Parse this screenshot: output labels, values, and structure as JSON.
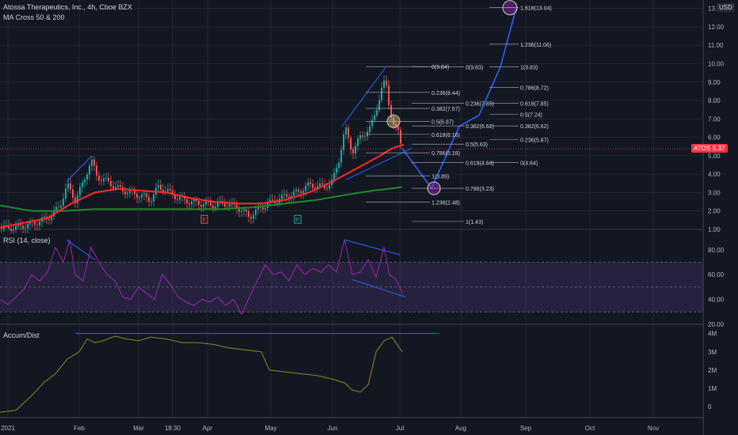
{
  "header": {
    "symbol_title": "Atossa Therapeutics, Inc., 4h, Cboe BZX",
    "indicator": "MA Cross 50 & 200"
  },
  "currency_badge": "USD",
  "price_tag": {
    "label": "ATOS",
    "value": "5.37",
    "color": "#f23645"
  },
  "colors": {
    "background": "#131722",
    "grid": "#2a2e39",
    "up_candle": "#26a69a",
    "down_candle": "#ef5350",
    "ma50": "#ff2a2a",
    "ma200": "#1f8a2a",
    "drawing": "#2962ff",
    "rsi": "#9c27b0",
    "ad": "#8c8c1a"
  },
  "panes": {
    "rsi_label": "RSI (14, close)",
    "ad_label": "Accum/Dist"
  },
  "chart_data": [
    {
      "type": "candlestick",
      "title": "Atossa Therapeutics, Inc., 4h, Cboe BZX",
      "y_ticks": [
        "1.00",
        "2.00",
        "3.00",
        "4.00",
        "5.00",
        "6.00",
        "7.00",
        "8.00",
        "9.00",
        "10.00",
        "11.00",
        "12.00",
        "13.00"
      ],
      "x_ticks": [
        "2021",
        "Feb",
        "Mar",
        "18:30",
        "Apr",
        "May",
        "Jun",
        "Jul",
        "Aug",
        "Sep",
        "Oct",
        "Nov"
      ],
      "ylim": [
        1,
        13.2
      ],
      "close_path": [
        [
          0,
          1.05
        ],
        [
          20,
          1.1
        ],
        [
          40,
          1.3
        ],
        [
          60,
          1.6
        ],
        [
          75,
          2.2
        ],
        [
          85,
          3.4
        ],
        [
          95,
          2.6
        ],
        [
          105,
          3.5
        ],
        [
          115,
          4.8
        ],
        [
          122,
          3.9
        ],
        [
          135,
          3.6
        ],
        [
          150,
          3.2
        ],
        [
          165,
          3.0
        ],
        [
          180,
          2.8
        ],
        [
          190,
          2.6
        ],
        [
          200,
          3.3
        ],
        [
          210,
          3.1
        ],
        [
          225,
          2.7
        ],
        [
          240,
          2.5
        ],
        [
          255,
          2.4
        ],
        [
          270,
          2.3
        ],
        [
          285,
          2.4
        ],
        [
          300,
          2.2
        ],
        [
          315,
          1.7
        ],
        [
          330,
          2.2
        ],
        [
          345,
          2.5
        ],
        [
          360,
          2.8
        ],
        [
          375,
          3.0
        ],
        [
          390,
          3.4
        ],
        [
          410,
          3.3
        ],
        [
          420,
          3.6
        ],
        [
          428,
          4.8
        ],
        [
          436,
          6.5
        ],
        [
          445,
          5.2
        ],
        [
          455,
          6.0
        ],
        [
          468,
          6.5
        ],
        [
          475,
          7.5
        ],
        [
          482,
          8.6
        ],
        [
          487,
          9.1
        ],
        [
          492,
          7.6
        ],
        [
          498,
          6.5
        ],
        [
          503,
          6.3
        ],
        [
          508,
          5.4
        ]
      ],
      "ma50": [
        [
          0,
          1.1
        ],
        [
          60,
          1.6
        ],
        [
          90,
          2.4
        ],
        [
          120,
          3.0
        ],
        [
          150,
          3.2
        ],
        [
          180,
          3.1
        ],
        [
          210,
          3.0
        ],
        [
          240,
          2.7
        ],
        [
          270,
          2.5
        ],
        [
          300,
          2.4
        ],
        [
          330,
          2.4
        ],
        [
          360,
          2.6
        ],
        [
          390,
          3.0
        ],
        [
          420,
          3.6
        ],
        [
          450,
          4.3
        ],
        [
          480,
          5.0
        ],
        [
          495,
          5.4
        ],
        [
          510,
          5.6
        ]
      ],
      "ma200": [
        [
          0,
          2.3
        ],
        [
          40,
          2.0
        ],
        [
          80,
          2.0
        ],
        [
          120,
          2.1
        ],
        [
          160,
          2.1
        ],
        [
          200,
          2.1
        ],
        [
          240,
          2.1
        ],
        [
          280,
          2.1
        ],
        [
          320,
          2.2
        ],
        [
          360,
          2.4
        ],
        [
          400,
          2.6
        ],
        [
          440,
          2.9
        ],
        [
          470,
          3.1
        ],
        [
          490,
          3.2
        ],
        [
          508,
          3.3
        ]
      ],
      "projection_path": [
        [
          508,
          5.4
        ],
        [
          545,
          3.23
        ],
        [
          580,
          6.6
        ],
        [
          605,
          7.2
        ],
        [
          632,
          9.83
        ],
        [
          652,
          13.04
        ]
      ],
      "markers": [
        "E",
        "E"
      ],
      "fib_levels": [
        {
          "label": "0(9.84)",
          "y": 9.84,
          "col": "a"
        },
        {
          "label": "0.236(8.44)",
          "y": 8.44,
          "col": "a"
        },
        {
          "label": "0.382(7.57)",
          "y": 7.57,
          "col": "a"
        },
        {
          "label": "0.5(6.87)",
          "y": 6.87,
          "col": "a"
        },
        {
          "label": "0.618(6.16)",
          "y": 6.16,
          "col": "a"
        },
        {
          "label": "0.786(5.16)",
          "y": 5.16,
          "col": "a"
        },
        {
          "label": "1(3.89)",
          "y": 3.89,
          "col": "a"
        },
        {
          "label": "1.236(2.48)",
          "y": 2.48,
          "col": "a"
        },
        {
          "label": "0(9.83)",
          "y": 9.83,
          "col": "b"
        },
        {
          "label": "0.236(7.85)",
          "y": 7.85,
          "col": "b"
        },
        {
          "label": "0.382(6.62)",
          "y": 6.62,
          "col": "b"
        },
        {
          "label": "0.5(5.63)",
          "y": 5.63,
          "col": "b"
        },
        {
          "label": "0.618(4.64)",
          "y": 4.64,
          "col": "b"
        },
        {
          "label": "0.786(3.23)",
          "y": 3.23,
          "col": "b"
        },
        {
          "label": "1(1.43)",
          "y": 1.43,
          "col": "b"
        },
        {
          "label": "1.618(13.04)",
          "y": 13.04,
          "col": "c"
        },
        {
          "label": "1.236(11.06)",
          "y": 11.06,
          "col": "c"
        },
        {
          "label": "1(9.83)",
          "y": 9.83,
          "col": "c"
        },
        {
          "label": "0.786(8.72)",
          "y": 8.72,
          "col": "c"
        },
        {
          "label": "0.618(7.85)",
          "y": 7.85,
          "col": "c"
        },
        {
          "label": "0.5(7.24)",
          "y": 7.24,
          "col": "c"
        },
        {
          "label": "0.382(6.62)",
          "y": 6.62,
          "col": "c"
        },
        {
          "label": "0.236(5.87)",
          "y": 5.87,
          "col": "c"
        },
        {
          "label": "0(4.64)",
          "y": 4.64,
          "col": "c"
        }
      ]
    },
    {
      "type": "line",
      "title": "RSI (14, close)",
      "y_ticks": [
        "20.00",
        "40.00",
        "60.00",
        "80.00"
      ],
      "ylim": [
        20,
        92
      ],
      "band": [
        30,
        70
      ],
      "midline": 50,
      "values": [
        [
          0,
          40
        ],
        [
          10,
          36
        ],
        [
          20,
          42
        ],
        [
          30,
          48
        ],
        [
          40,
          60
        ],
        [
          50,
          55
        ],
        [
          60,
          62
        ],
        [
          70,
          82
        ],
        [
          80,
          70
        ],
        [
          88,
          88
        ],
        [
          95,
          60
        ],
        [
          105,
          55
        ],
        [
          115,
          82
        ],
        [
          125,
          70
        ],
        [
          135,
          60
        ],
        [
          145,
          55
        ],
        [
          155,
          42
        ],
        [
          165,
          40
        ],
        [
          175,
          50
        ],
        [
          185,
          45
        ],
        [
          195,
          40
        ],
        [
          205,
          60
        ],
        [
          215,
          52
        ],
        [
          225,
          42
        ],
        [
          235,
          38
        ],
        [
          245,
          35
        ],
        [
          255,
          40
        ],
        [
          265,
          38
        ],
        [
          275,
          42
        ],
        [
          285,
          35
        ],
        [
          295,
          40
        ],
        [
          305,
          28
        ],
        [
          315,
          42
        ],
        [
          325,
          55
        ],
        [
          335,
          68
        ],
        [
          345,
          60
        ],
        [
          355,
          62
        ],
        [
          365,
          55
        ],
        [
          375,
          68
        ],
        [
          385,
          60
        ],
        [
          395,
          65
        ],
        [
          405,
          62
        ],
        [
          415,
          68
        ],
        [
          425,
          62
        ],
        [
          435,
          88
        ],
        [
          445,
          60
        ],
        [
          455,
          62
        ],
        [
          465,
          72
        ],
        [
          475,
          58
        ],
        [
          485,
          82
        ],
        [
          492,
          60
        ],
        [
          500,
          56
        ],
        [
          508,
          45
        ]
      ]
    },
    {
      "type": "line",
      "title": "Accum/Dist",
      "y_ticks": [
        "0",
        "1M",
        "2M",
        "3M",
        "4M"
      ],
      "ylim": [
        -0.6,
        4.2
      ],
      "values": [
        [
          0,
          -0.3
        ],
        [
          20,
          -0.2
        ],
        [
          40,
          0.6
        ],
        [
          55,
          1.3
        ],
        [
          70,
          1.8
        ],
        [
          85,
          2.6
        ],
        [
          100,
          3.0
        ],
        [
          110,
          3.7
        ],
        [
          120,
          3.5
        ],
        [
          130,
          3.6
        ],
        [
          145,
          3.85
        ],
        [
          160,
          3.7
        ],
        [
          175,
          3.6
        ],
        [
          190,
          3.8
        ],
        [
          210,
          3.7
        ],
        [
          230,
          3.5
        ],
        [
          250,
          3.5
        ],
        [
          270,
          3.4
        ],
        [
          290,
          3.2
        ],
        [
          310,
          3.1
        ],
        [
          330,
          3.0
        ],
        [
          340,
          2.0
        ],
        [
          360,
          1.9
        ],
        [
          380,
          1.8
        ],
        [
          400,
          1.7
        ],
        [
          420,
          1.5
        ],
        [
          435,
          1.3
        ],
        [
          445,
          0.9
        ],
        [
          455,
          0.8
        ],
        [
          465,
          1.2
        ],
        [
          475,
          3.0
        ],
        [
          485,
          3.6
        ],
        [
          495,
          3.8
        ],
        [
          508,
          3.0
        ]
      ]
    }
  ]
}
